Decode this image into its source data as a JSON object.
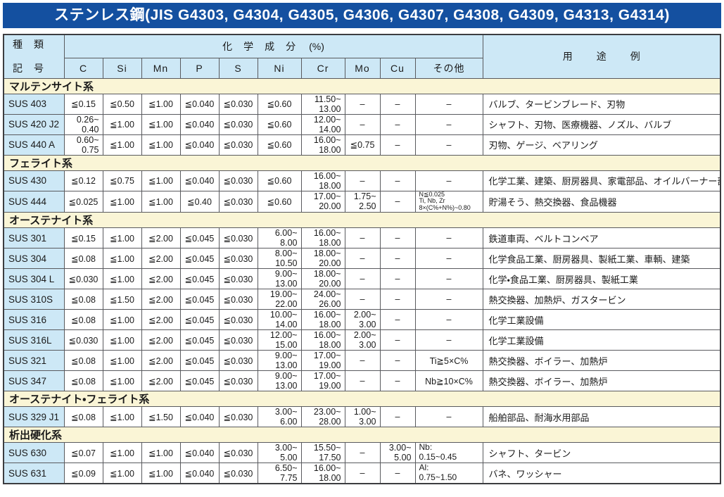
{
  "title": "ステンレス鋼(JIS G4303, G4304, G4305, G4306, G4307, G4308, G4309, G4313, G4314)",
  "colors": {
    "title_bg": "#1450a0",
    "header_bg": "#cde8f6",
    "section_bg": "#faf5d6",
    "code_bg": "#cde8f6",
    "border": "#595a5e",
    "outer_border": "#3c3d40"
  },
  "table": {
    "header": {
      "kind_top": "種　類",
      "kind_bottom": "記　号",
      "chem": "化　学　成　分",
      "chem_unit": "(%)",
      "columns": [
        "C",
        "Si",
        "Mn",
        "P",
        "S",
        "Ni",
        "Cr",
        "Mo",
        "Cu",
        "その他"
      ],
      "usage": "用　途　例"
    },
    "sections": [
      {
        "name": "マルテンサイト系",
        "rows": [
          {
            "code": "SUS 403",
            "c": "≦0.15",
            "si": "≦0.50",
            "mn": "≦1.00",
            "p": "≦0.040",
            "s": "≦0.030",
            "ni": "≦0.60",
            "cr": "11.50~\n13.00",
            "mo": "–",
            "cu": "–",
            "other": "–",
            "usage": "バルブ、タービンブレード、刃物"
          },
          {
            "code": "SUS 420 J2",
            "c": "0.26~\n0.40",
            "si": "≦1.00",
            "mn": "≦1.00",
            "p": "≦0.040",
            "s": "≦0.030",
            "ni": "≦0.60",
            "cr": "12.00~\n14.00",
            "mo": "–",
            "cu": "–",
            "other": "–",
            "usage": "シャフト、刃物、医療機器、ノズル、バルブ"
          },
          {
            "code": "SUS 440 A",
            "c": "0.60~\n0.75",
            "si": "≦1.00",
            "mn": "≦1.00",
            "p": "≦0.040",
            "s": "≦0.030",
            "ni": "≦0.60",
            "cr": "16.00~\n18.00",
            "mo": "≦0.75",
            "cu": "–",
            "other": "–",
            "usage": "刃物、ゲージ、ベアリング"
          }
        ]
      },
      {
        "name": "フェライト系",
        "rows": [
          {
            "code": "SUS 430",
            "c": "≦0.12",
            "si": "≦0.75",
            "mn": "≦1.00",
            "p": "≦0.040",
            "s": "≦0.030",
            "ni": "≦0.60",
            "cr": "16.00~\n18.00",
            "mo": "–",
            "cu": "–",
            "other": "–",
            "usage": "化学工業、建築、厨房器具、家電部品、オイルバーナー部品"
          },
          {
            "code": "SUS 444",
            "c": "≦0.025",
            "si": "≦1.00",
            "mn": "≦1.00",
            "p": "≦0.40",
            "s": "≦0.030",
            "ni": "≦0.60",
            "cr": "17.00~\n20.00",
            "mo": "1.75~\n2.50",
            "cu": "–",
            "other": "N≦0.025\nTi, Nb, Zr\n8×(C%+N%)~0.80",
            "usage": "貯湯そう、熱交換器、食品機器"
          }
        ]
      },
      {
        "name": "オーステナイト系",
        "rows": [
          {
            "code": "SUS 301",
            "c": "≦0.15",
            "si": "≦1.00",
            "mn": "≦2.00",
            "p": "≦0.045",
            "s": "≦0.030",
            "ni": "6.00~\n8.00",
            "cr": "16.00~\n18.00",
            "mo": "–",
            "cu": "–",
            "other": "–",
            "usage": "鉄道車両、ベルトコンベア"
          },
          {
            "code": "SUS 304",
            "c": "≦0.08",
            "si": "≦1.00",
            "mn": "≦2.00",
            "p": "≦0.045",
            "s": "≦0.030",
            "ni": "8.00~\n10.50",
            "cr": "18.00~\n20.00",
            "mo": "–",
            "cu": "–",
            "other": "–",
            "usage": "化学食品工業、厨房器具、製紙工業、車輌、建築"
          },
          {
            "code": "SUS 304 L",
            "c": "≦0.030",
            "si": "≦1.00",
            "mn": "≦2.00",
            "p": "≦0.045",
            "s": "≦0.030",
            "ni": "9.00~\n13.00",
            "cr": "18.00~\n20.00",
            "mo": "–",
            "cu": "–",
            "other": "–",
            "usage": "化学・食品工業、厨房器具、製紙工業"
          },
          {
            "code": "SUS 310S",
            "c": "≦0.08",
            "si": "≦1.50",
            "mn": "≦2.00",
            "p": "≦0.045",
            "s": "≦0.030",
            "ni": "19.00~\n22.00",
            "cr": "24.00~\n26.00",
            "mo": "–",
            "cu": "–",
            "other": "–",
            "usage": "熱交換器、加熱炉、ガスタービン"
          },
          {
            "code": "SUS 316",
            "c": "≦0.08",
            "si": "≦1.00",
            "mn": "≦2.00",
            "p": "≦0.045",
            "s": "≦0.030",
            "ni": "10.00~\n14.00",
            "cr": "16.00~\n18.00",
            "mo": "2.00~\n3.00",
            "cu": "–",
            "other": "–",
            "usage": "化学工業設備"
          },
          {
            "code": "SUS 316L",
            "c": "≦0.030",
            "si": "≦1.00",
            "mn": "≦2.00",
            "p": "≦0.045",
            "s": "≦0.030",
            "ni": "12.00~\n15.00",
            "cr": "16.00~\n18.00",
            "mo": "2.00~\n3.00",
            "cu": "–",
            "other": "–",
            "usage": "化学工業設備"
          },
          {
            "code": "SUS 321",
            "c": "≦0.08",
            "si": "≦1.00",
            "mn": "≦2.00",
            "p": "≦0.045",
            "s": "≦0.030",
            "ni": "9.00~\n13.00",
            "cr": "17.00~\n19.00",
            "mo": "–",
            "cu": "–",
            "other": "Ti≧5×C%",
            "usage": "熱交換器、ボイラー、加熱炉"
          },
          {
            "code": "SUS 347",
            "c": "≦0.08",
            "si": "≦1.00",
            "mn": "≦2.00",
            "p": "≦0.045",
            "s": "≦0.030",
            "ni": "9.00~\n13.00",
            "cr": "17.00~\n19.00",
            "mo": "–",
            "cu": "–",
            "other": "Nb≧10×C%",
            "usage": "熱交換器、ボイラー、加熱炉"
          }
        ]
      },
      {
        "name": "オーステナイト・フェライト系",
        "rows": [
          {
            "code": "SUS 329 J1",
            "c": "≦0.08",
            "si": "≦1.00",
            "mn": "≦1.50",
            "p": "≦0.040",
            "s": "≦0.030",
            "ni": "3.00~\n6.00",
            "cr": "23.00~\n28.00",
            "mo": "1.00~\n3.00",
            "cu": "–",
            "other": "–",
            "usage": "船舶部品、耐海水用部品"
          }
        ]
      },
      {
        "name": "析出硬化系",
        "rows": [
          {
            "code": "SUS 630",
            "c": "≦0.07",
            "si": "≦1.00",
            "mn": "≦1.00",
            "p": "≦0.040",
            "s": "≦0.030",
            "ni": "3.00~\n5.00",
            "cr": "15.50~\n17.50",
            "mo": "–",
            "cu": "3.00~\n5.00",
            "other": "Nb:\n0.15~0.45",
            "usage": "シャフト、タービン"
          },
          {
            "code": "SUS 631",
            "c": "≦0.09",
            "si": "≦1.00",
            "mn": "≦1.00",
            "p": "≦0.040",
            "s": "≦0.030",
            "ni": "6.50~\n7.75",
            "cr": "16.00~\n18.00",
            "mo": "–",
            "cu": "–",
            "other": "Al:\n0.75~1.50",
            "usage": "バネ、ワッシャー"
          }
        ]
      }
    ]
  }
}
